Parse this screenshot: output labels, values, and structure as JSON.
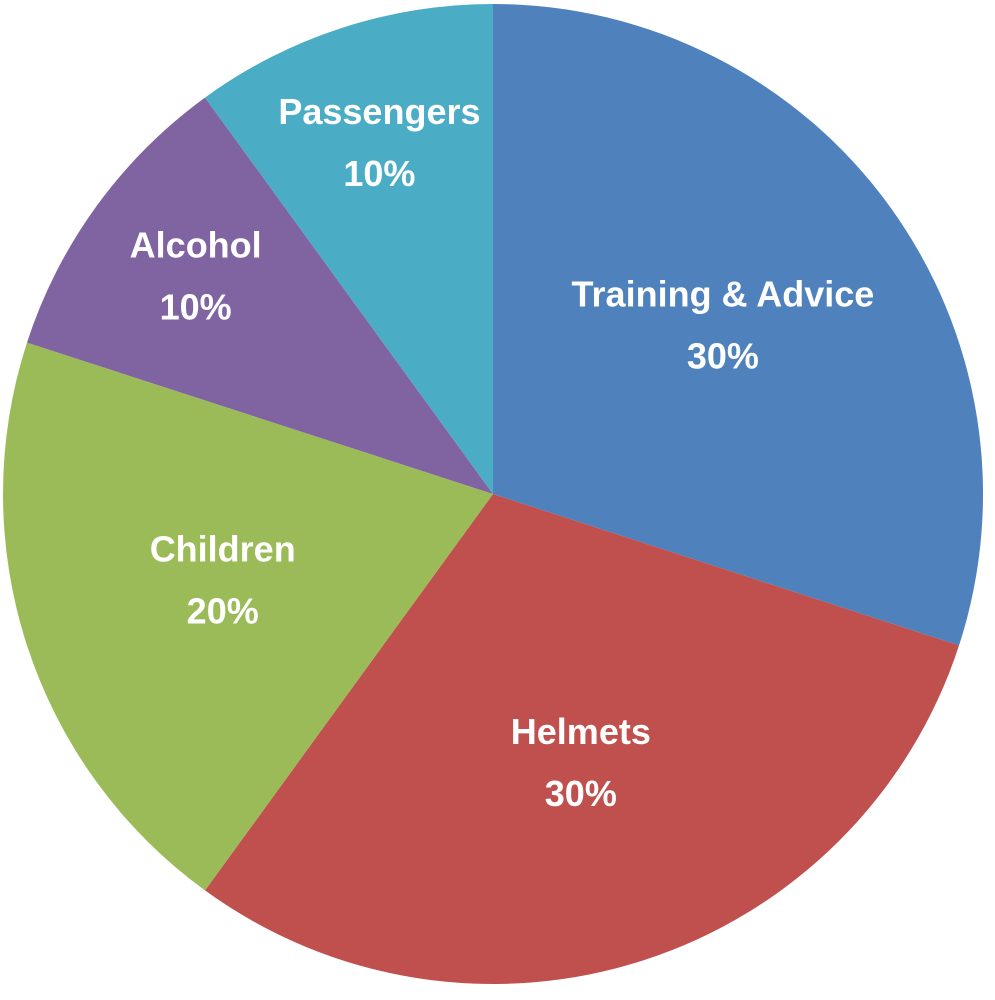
{
  "chart_data": {
    "type": "pie",
    "categories": [
      "Training & Advice",
      "Helmets",
      "Children",
      "Alcohol",
      "Passengers"
    ],
    "values": [
      30,
      30,
      20,
      10,
      10
    ],
    "value_labels": [
      "30%",
      "30%",
      "20%",
      "10%",
      "10%"
    ],
    "colors": [
      "#4f81bd",
      "#c0504d",
      "#9bbb59",
      "#8064a2",
      "#4bacc6"
    ]
  }
}
